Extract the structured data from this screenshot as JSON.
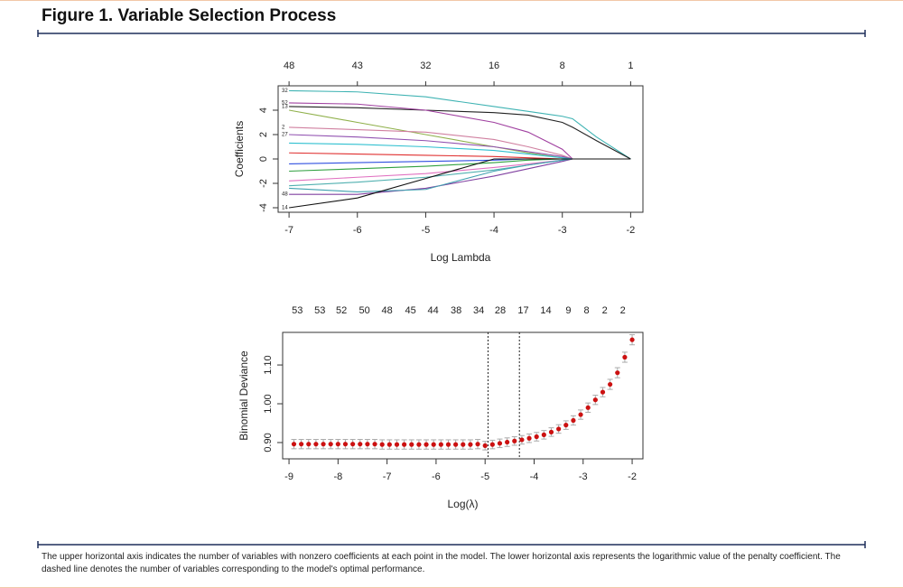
{
  "header": {
    "title": "Figure 1. Variable Selection Process"
  },
  "caption": "The upper horizontal axis indicates the number of variables with nonzero coefficients at each point in the model. The lower horizontal axis represents the logarithmic value of the penalty coefficient. The dashed line denotes the number of variables corresponding to the model's optimal performance.",
  "chart_data": [
    {
      "type": "line",
      "xlabel": "Log Lambda",
      "ylabel": "Coefficients",
      "xlim": [
        -7.16,
        -1.82
      ],
      "ylim": [
        -4.37,
        6.0
      ],
      "xticks": [
        -7,
        -6,
        -5,
        -4,
        -3,
        -2
      ],
      "yticks": [
        -4,
        -2,
        0,
        2,
        4
      ],
      "x2ticks": [
        {
          "value": -7,
          "label": "48"
        },
        {
          "value": -6,
          "label": "43"
        },
        {
          "value": -5,
          "label": "32"
        },
        {
          "value": -4,
          "label": "16"
        },
        {
          "value": -3,
          "label": "8"
        },
        {
          "value": -2,
          "label": "1"
        }
      ],
      "x": [
        -7,
        -6,
        -5,
        -4,
        -3.5,
        -3,
        -2.85,
        -2.5,
        -2
      ],
      "series": [
        {
          "name": "32",
          "color": "#3fb3b3",
          "values": [
            5.6,
            5.5,
            5.1,
            4.3,
            3.9,
            3.5,
            3.3,
            1.8,
            0
          ]
        },
        {
          "name": "13",
          "color": "#222222",
          "values": [
            4.3,
            4.2,
            4.0,
            3.8,
            3.6,
            3.0,
            2.6,
            1.5,
            0
          ]
        },
        {
          "name": "52",
          "color": "#a040a0",
          "values": [
            4.6,
            4.5,
            4.0,
            3.0,
            2.2,
            0.8,
            0,
            0,
            0
          ]
        },
        {
          "color": "#8fb04a",
          "values": [
            4.0,
            3.0,
            2.0,
            1.0,
            0.5,
            0.1,
            0,
            0,
            0
          ]
        },
        {
          "name": "2",
          "color": "#d080a0",
          "values": [
            2.6,
            2.4,
            2.2,
            1.6,
            1.0,
            0.3,
            0,
            0,
            0
          ]
        },
        {
          "name": "27",
          "color": "#9050b0",
          "values": [
            2.0,
            1.8,
            1.5,
            1.0,
            0.6,
            0.2,
            0,
            0,
            0
          ]
        },
        {
          "color": "#30c0d0",
          "values": [
            1.3,
            1.2,
            1.0,
            0.7,
            0.4,
            0.1,
            0,
            0,
            0
          ]
        },
        {
          "color": "#e03030",
          "values": [
            0.5,
            0.4,
            0.3,
            0.2,
            0.1,
            0,
            0,
            0,
            0
          ]
        },
        {
          "color": "#3050e0",
          "values": [
            -0.4,
            -0.3,
            -0.2,
            -0.1,
            0,
            0,
            0,
            0,
            0
          ]
        },
        {
          "color": "#30a040",
          "values": [
            -1.0,
            -0.8,
            -0.6,
            -0.3,
            -0.1,
            0,
            0,
            0,
            0
          ]
        },
        {
          "color": "#e070c0",
          "values": [
            -1.8,
            -1.5,
            -1.2,
            -0.7,
            -0.4,
            -0.1,
            0,
            0,
            0
          ]
        },
        {
          "color": "#50b0b0",
          "values": [
            -2.2,
            -1.9,
            -1.5,
            -0.9,
            -0.5,
            -0.1,
            0,
            0,
            0
          ]
        },
        {
          "name": "48",
          "color": "#8040a0",
          "values": [
            -2.9,
            -2.9,
            -2.4,
            -1.4,
            -0.8,
            -0.2,
            0,
            0,
            0
          ]
        },
        {
          "color": "#40a0b0",
          "values": [
            -2.4,
            -2.7,
            -2.5,
            -1.0,
            -0.5,
            -0.1,
            0,
            0,
            0
          ]
        },
        {
          "name": "14",
          "color": "#111111",
          "values": [
            -4.0,
            -3.2,
            -1.6,
            0,
            0,
            0,
            0,
            0,
            0
          ]
        }
      ]
    },
    {
      "type": "scatter",
      "xlabel": "Log(λ)",
      "ylabel": "Binomial Deviance",
      "color": "#cc1111",
      "error_color": "#aaaaaa",
      "xlim": [
        -9.13,
        -1.78
      ],
      "ylim": [
        0.858,
        1.184
      ],
      "xticks": [
        -9,
        -8,
        -7,
        -6,
        -5,
        -4,
        -3,
        -2
      ],
      "yticks": [
        {
          "value": 0.9,
          "label": "0.90"
        },
        {
          "value": 1.0,
          "label": "1.00"
        },
        {
          "value": 1.1,
          "label": "1.10"
        }
      ],
      "x2ticks": [
        {
          "value": -8.83,
          "label": "53"
        },
        {
          "value": -8.37,
          "label": "53"
        },
        {
          "value": -7.93,
          "label": "52"
        },
        {
          "value": -7.46,
          "label": "50"
        },
        {
          "value": -7.0,
          "label": "48"
        },
        {
          "value": -6.52,
          "label": "45"
        },
        {
          "value": -6.06,
          "label": "44"
        },
        {
          "value": -5.59,
          "label": "38"
        },
        {
          "value": -5.13,
          "label": "34"
        },
        {
          "value": -4.69,
          "label": "28"
        },
        {
          "value": -4.22,
          "label": "17"
        },
        {
          "value": -3.76,
          "label": "14"
        },
        {
          "value": -3.3,
          "label": "9"
        },
        {
          "value": -2.93,
          "label": "8"
        },
        {
          "value": -2.56,
          "label": "2"
        },
        {
          "value": -2.19,
          "label": "2"
        }
      ],
      "vlines": [
        -4.94,
        -4.3
      ],
      "x": [
        -8.9,
        -8.75,
        -8.6,
        -8.45,
        -8.3,
        -8.15,
        -8.0,
        -7.85,
        -7.7,
        -7.55,
        -7.4,
        -7.25,
        -7.1,
        -6.95,
        -6.8,
        -6.65,
        -6.5,
        -6.35,
        -6.2,
        -6.05,
        -5.9,
        -5.75,
        -5.6,
        -5.45,
        -5.3,
        -5.15,
        -5.0,
        -4.85,
        -4.7,
        -4.55,
        -4.4,
        -4.25,
        -4.1,
        -3.95,
        -3.8,
        -3.65,
        -3.5,
        -3.35,
        -3.2,
        -3.05,
        -2.9,
        -2.75,
        -2.6,
        -2.45,
        -2.3,
        -2.15,
        -2.0
      ],
      "values": [
        0.896,
        0.896,
        0.896,
        0.896,
        0.896,
        0.896,
        0.896,
        0.896,
        0.896,
        0.896,
        0.896,
        0.896,
        0.895,
        0.895,
        0.895,
        0.895,
        0.895,
        0.895,
        0.895,
        0.895,
        0.895,
        0.895,
        0.895,
        0.895,
        0.895,
        0.896,
        0.892,
        0.895,
        0.898,
        0.901,
        0.904,
        0.907,
        0.911,
        0.915,
        0.92,
        0.927,
        0.935,
        0.945,
        0.957,
        0.972,
        0.99,
        1.01,
        1.03,
        1.05,
        1.08,
        1.12,
        1.165
      ],
      "errors": [
        0.012,
        0.012,
        0.012,
        0.012,
        0.012,
        0.012,
        0.012,
        0.012,
        0.012,
        0.012,
        0.012,
        0.012,
        0.012,
        0.012,
        0.012,
        0.012,
        0.012,
        0.012,
        0.012,
        0.012,
        0.012,
        0.012,
        0.012,
        0.012,
        0.012,
        0.012,
        0.011,
        0.011,
        0.011,
        0.011,
        0.011,
        0.011,
        0.011,
        0.011,
        0.011,
        0.011,
        0.011,
        0.011,
        0.012,
        0.012,
        0.012,
        0.012,
        0.012,
        0.013,
        0.013,
        0.013,
        0.013
      ]
    }
  ]
}
